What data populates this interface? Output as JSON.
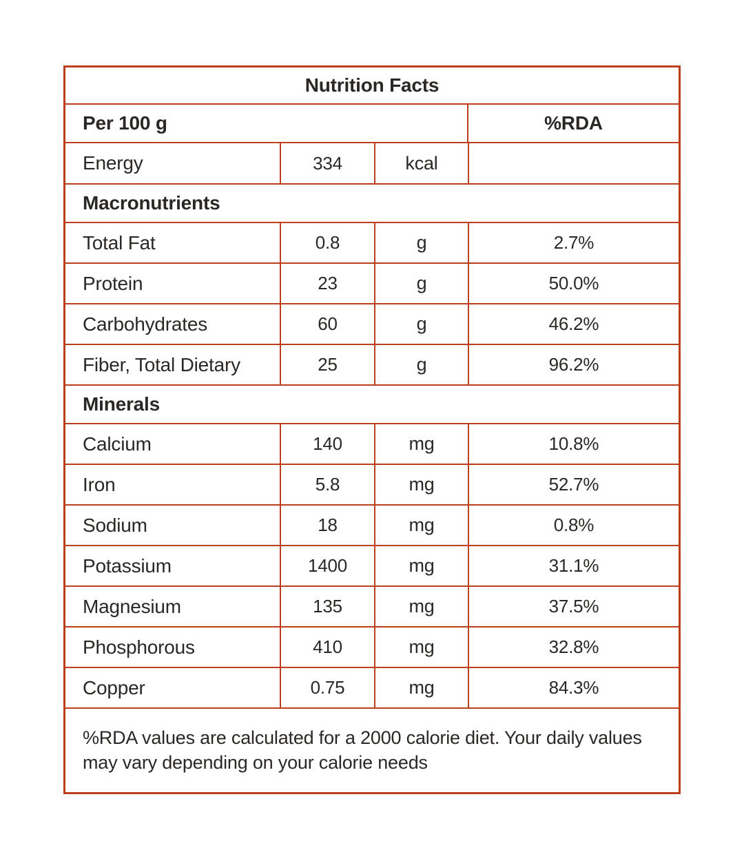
{
  "colors": {
    "border": "#bc3e1d",
    "text": "#2b2725"
  },
  "table": {
    "title": "Nutrition Facts",
    "header": {
      "serving": "Per 100 g",
      "rda": "%RDA"
    },
    "rows": [
      {
        "kind": "data",
        "label": "Energy",
        "value": "334",
        "unit": "kcal",
        "rda": ""
      },
      {
        "kind": "section",
        "label": "Macronutrients"
      },
      {
        "kind": "data",
        "label": "Total Fat",
        "value": "0.8",
        "unit": "g",
        "rda": "2.7%"
      },
      {
        "kind": "data",
        "label": "Protein",
        "value": "23",
        "unit": "g",
        "rda": "50.0%"
      },
      {
        "kind": "data",
        "label": "Carbohydrates",
        "value": "60",
        "unit": "g",
        "rda": "46.2%"
      },
      {
        "kind": "data",
        "label": "Fiber, Total Dietary",
        "value": "25",
        "unit": "g",
        "rda": "96.2%"
      },
      {
        "kind": "section",
        "label": "Minerals"
      },
      {
        "kind": "data",
        "label": "Calcium",
        "value": "140",
        "unit": "mg",
        "rda": "10.8%"
      },
      {
        "kind": "data",
        "label": "Iron",
        "value": "5.8",
        "unit": "mg",
        "rda": "52.7%"
      },
      {
        "kind": "data",
        "label": "Sodium",
        "value": "18",
        "unit": "mg",
        "rda": "0.8%"
      },
      {
        "kind": "data",
        "label": "Potassium",
        "value": "1400",
        "unit": "mg",
        "rda": "31.1%"
      },
      {
        "kind": "data",
        "label": "Magnesium",
        "value": "135",
        "unit": "mg",
        "rda": "37.5%"
      },
      {
        "kind": "data",
        "label": "Phosphorous",
        "value": "410",
        "unit": "mg",
        "rda": "32.8%"
      },
      {
        "kind": "data",
        "label": "Copper",
        "value": "0.75",
        "unit": "mg",
        "rda": "84.3%"
      }
    ],
    "footnote": "%RDA values are calculated for a 2000 calorie diet. Your daily values may vary depending on your calorie needs"
  }
}
